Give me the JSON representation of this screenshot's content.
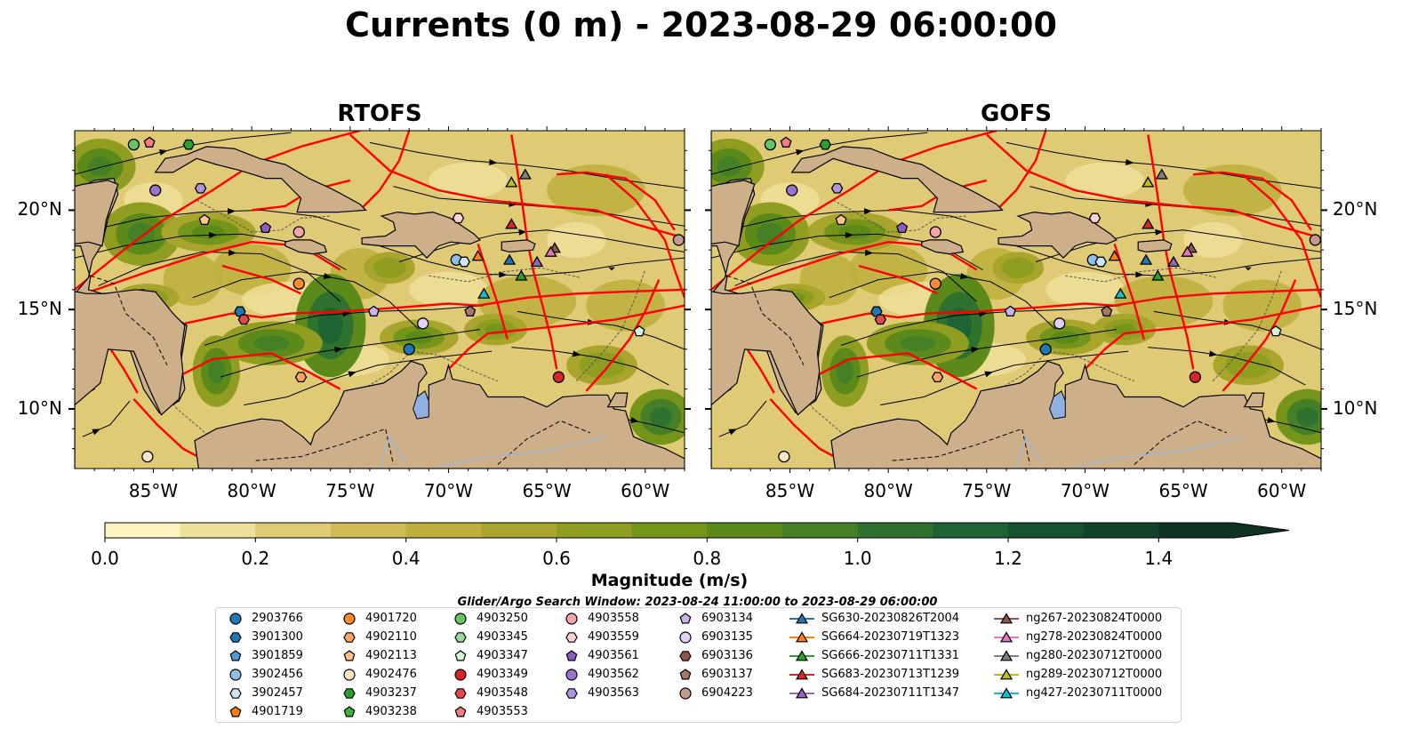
{
  "title": "Currents (0 m) - 2023-08-29 06:00:00",
  "panels": [
    {
      "title": "RTOFS"
    },
    {
      "title": "GOFS"
    }
  ],
  "colors": {
    "land": "#cdb08a",
    "track": "#ff0000",
    "lake": "#8fb0e0",
    "river": "#9bb8d8",
    "streamline": "#000000"
  },
  "chart_data": {
    "type": "heatmap",
    "quantity": "Magnitude (m/s)",
    "xlim": [
      -89,
      -58
    ],
    "ylim": [
      7,
      24
    ],
    "x_ticks": [
      {
        "value": -85,
        "label": "85°W"
      },
      {
        "value": -80,
        "label": "80°W"
      },
      {
        "value": -75,
        "label": "75°W"
      },
      {
        "value": -70,
        "label": "70°W"
      },
      {
        "value": -65,
        "label": "65°W"
      },
      {
        "value": -60,
        "label": "60°W"
      }
    ],
    "y_ticks": [
      {
        "value": 20,
        "label": "20°N"
      },
      {
        "value": 15,
        "label": "15°N"
      },
      {
        "value": 10,
        "label": "10°N"
      }
    ],
    "colorbar": {
      "label": "Magnitude (m/s)",
      "min": 0,
      "max": 1.5,
      "extend": "max",
      "ticks": [
        {
          "value": 0.0,
          "label": "0.0"
        },
        {
          "value": 0.2,
          "label": "0.2"
        },
        {
          "value": 0.4,
          "label": "0.4"
        },
        {
          "value": 0.6,
          "label": "0.6"
        },
        {
          "value": 0.8,
          "label": "0.8"
        },
        {
          "value": 1.0,
          "label": "1.0"
        },
        {
          "value": 1.2,
          "label": "1.2"
        },
        {
          "value": 1.4,
          "label": "1.4"
        }
      ],
      "colors": [
        "#fbf3c0",
        "#eedf9a",
        "#dfca75",
        "#cfba55",
        "#bdb03c",
        "#a8a52c",
        "#8f9d20",
        "#75941a",
        "#5c8a1a",
        "#458026",
        "#2f7230",
        "#1e6333",
        "#175230",
        "#13422a",
        "#0f3322"
      ]
    },
    "markers": [
      {
        "id": "2903766",
        "lon": -72.0,
        "lat": 13.0
      },
      {
        "id": "3901300",
        "lon": -80.6,
        "lat": 14.9
      },
      {
        "id": "3902456",
        "lon": -69.6,
        "lat": 17.5
      },
      {
        "id": "3902457",
        "lon": -69.2,
        "lat": 17.4
      },
      {
        "id": "4901720",
        "lon": -77.6,
        "lat": 16.3
      },
      {
        "id": "4902110",
        "lon": -77.5,
        "lat": 11.6
      },
      {
        "id": "4902113",
        "lon": -82.4,
        "lat": 19.5
      },
      {
        "id": "4902476",
        "lon": -85.3,
        "lat": 7.6
      },
      {
        "id": "4903237",
        "lon": -83.2,
        "lat": 23.3
      },
      {
        "id": "4903250",
        "lon": -86.0,
        "lat": 23.3
      },
      {
        "id": "4903347",
        "lon": -60.3,
        "lat": 13.9
      },
      {
        "id": "4903349",
        "lon": -64.4,
        "lat": 11.6
      },
      {
        "id": "4903548",
        "lon": -80.4,
        "lat": 14.5
      },
      {
        "id": "4903553",
        "lon": -85.2,
        "lat": 23.4
      },
      {
        "id": "4903558",
        "lon": -77.6,
        "lat": 18.9
      },
      {
        "id": "4903559",
        "lon": -69.5,
        "lat": 19.6
      },
      {
        "id": "4903561",
        "lon": -79.3,
        "lat": 19.1
      },
      {
        "id": "4903562",
        "lon": -84.9,
        "lat": 21.0
      },
      {
        "id": "4903563",
        "lon": -82.6,
        "lat": 21.1
      },
      {
        "id": "6903134",
        "lon": -73.8,
        "lat": 14.9
      },
      {
        "id": "6903135",
        "lon": -71.3,
        "lat": 14.3
      },
      {
        "id": "6903137",
        "lon": -68.9,
        "lat": 14.9
      },
      {
        "id": "6904223",
        "lon": -58.3,
        "lat": 18.5
      },
      {
        "id": "SG630-20230826T2004",
        "lon": -66.9,
        "lat": 17.5
      },
      {
        "id": "SG664-20230719T1323",
        "lon": -68.5,
        "lat": 17.7
      },
      {
        "id": "SG666-20230711T1331",
        "lon": -66.3,
        "lat": 16.7
      },
      {
        "id": "SG683-20230713T1239",
        "lon": -66.8,
        "lat": 19.3
      },
      {
        "id": "SG684-20230711T1347",
        "lon": -65.5,
        "lat": 17.4
      },
      {
        "id": "ng267-20230824T0000",
        "lon": -64.6,
        "lat": 18.1
      },
      {
        "id": "ng278-20230824T0000",
        "lon": -64.8,
        "lat": 17.9
      },
      {
        "id": "ng280-20230712T0000",
        "lon": -66.1,
        "lat": 21.8
      },
      {
        "id": "ng289-20230712T0000",
        "lon": -66.8,
        "lat": 21.4
      },
      {
        "id": "ng427-20230711T0000",
        "lon": -68.2,
        "lat": 15.8
      }
    ]
  },
  "legend": {
    "title": "Glider/Argo Search Window: 2023-08-24 11:00:00 to 2023-08-29 06:00:00",
    "columns": [
      [
        {
          "label": "2903766",
          "shape": "circle",
          "color": "#1f77b4",
          "line": false
        },
        {
          "label": "3901300",
          "shape": "hexagon",
          "color": "#1f77b4",
          "line": false
        },
        {
          "label": "3901859",
          "shape": "pentagon",
          "color": "#4f9bd4",
          "line": false
        },
        {
          "label": "3902456",
          "shape": "circle",
          "color": "#8fbfe6",
          "line": false
        },
        {
          "label": "3902457",
          "shape": "hexagon",
          "color": "#cfe6f7",
          "line": false
        },
        {
          "label": "4901719",
          "shape": "pentagon",
          "color": "#ff7f0e",
          "line": false
        }
      ],
      [
        {
          "label": "4901720",
          "shape": "circle",
          "color": "#ff8a2b",
          "line": false
        },
        {
          "label": "4902110",
          "shape": "hexagon",
          "color": "#ffa35e",
          "line": false
        },
        {
          "label": "4902113",
          "shape": "pentagon",
          "color": "#ffc28f",
          "line": false
        },
        {
          "label": "4902476",
          "shape": "circle",
          "color": "#ffe6c9",
          "line": false
        },
        {
          "label": "4903237",
          "shape": "hexagon",
          "color": "#2ca02c",
          "line": false
        },
        {
          "label": "4903238",
          "shape": "pentagon",
          "color": "#3cb43c",
          "line": false
        }
      ],
      [
        {
          "label": "4903250",
          "shape": "circle",
          "color": "#66c466",
          "line": false
        },
        {
          "label": "4903345",
          "shape": "hexagon",
          "color": "#99da99",
          "line": false
        },
        {
          "label": "4903347",
          "shape": "pentagon",
          "color": "#d6f5d6",
          "line": false
        },
        {
          "label": "4903349",
          "shape": "circle",
          "color": "#d62728",
          "line": false
        },
        {
          "label": "4903548",
          "shape": "hexagon",
          "color": "#e0494a",
          "line": false
        },
        {
          "label": "4903553",
          "shape": "pentagon",
          "color": "#f07f80",
          "line": false
        }
      ],
      [
        {
          "label": "4903558",
          "shape": "circle",
          "color": "#f4a6a6",
          "line": false
        },
        {
          "label": "4903559",
          "shape": "hexagon",
          "color": "#fbd3d3",
          "line": false
        },
        {
          "label": "4903561",
          "shape": "pentagon",
          "color": "#8c5bc4",
          "line": false
        },
        {
          "label": "4903562",
          "shape": "circle",
          "color": "#9a73d0",
          "line": false
        },
        {
          "label": "4903563",
          "shape": "hexagon",
          "color": "#b094dc",
          "line": false
        }
      ],
      [
        {
          "label": "6903134",
          "shape": "pentagon",
          "color": "#c9b3ec",
          "line": false
        },
        {
          "label": "6903135",
          "shape": "circle",
          "color": "#e0d0f5",
          "line": false
        },
        {
          "label": "6903136",
          "shape": "hexagon",
          "color": "#8c564b",
          "line": false
        },
        {
          "label": "6903137",
          "shape": "pentagon",
          "color": "#a8776b",
          "line": false
        },
        {
          "label": "6904223",
          "shape": "circle",
          "color": "#c49a8e",
          "line": false
        }
      ],
      [
        {
          "label": "SG630-20230826T2004",
          "shape": "triangle",
          "color": "#1f77b4",
          "line": true
        },
        {
          "label": "SG664-20230719T1323",
          "shape": "triangle",
          "color": "#ff7f0e",
          "line": true
        },
        {
          "label": "SG666-20230711T1331",
          "shape": "triangle",
          "color": "#2ca02c",
          "line": true
        },
        {
          "label": "SG683-20230713T1239",
          "shape": "triangle",
          "color": "#d62728",
          "line": true
        },
        {
          "label": "SG684-20230711T1347",
          "shape": "triangle",
          "color": "#9467bd",
          "line": true
        }
      ],
      [
        {
          "label": "ng267-20230824T0000",
          "shape": "triangle",
          "color": "#8c564b",
          "line": true
        },
        {
          "label": "ng278-20230824T0000",
          "shape": "triangle",
          "color": "#e377c2",
          "line": true
        },
        {
          "label": "ng280-20230712T0000",
          "shape": "triangle",
          "color": "#7f7f7f",
          "line": true
        },
        {
          "label": "ng289-20230712T0000",
          "shape": "triangle",
          "color": "#bcbd22",
          "line": true
        },
        {
          "label": "ng427-20230711T0000",
          "shape": "triangle",
          "color": "#17becf",
          "line": true
        }
      ]
    ]
  }
}
